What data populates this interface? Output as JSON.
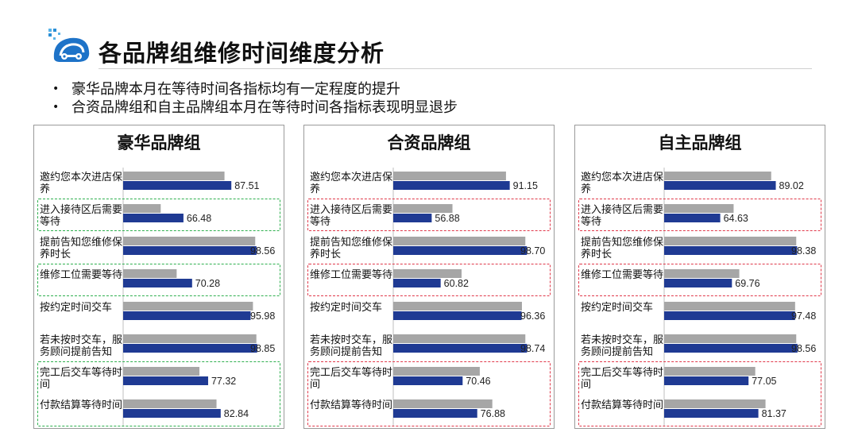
{
  "header": {
    "title": "各品牌组维修时间维度分析",
    "logo_icon": "car-wrench-logo-icon"
  },
  "bullets": [
    "豪华品牌本月在等待时间各指标均有一定程度的提升",
    "合资品牌组和自主品牌组本月在等待时间各指标表现明显退步"
  ],
  "colors": {
    "current_bar": "#1f3a93",
    "previous_bar": "#a6a6a6",
    "highlight_green": "#2fb04f",
    "highlight_red": "#e0394a"
  },
  "chart_data": [
    {
      "type": "bar",
      "orientation": "horizontal",
      "title": "豪华品牌组",
      "categories": [
        "邀约您本次进店保养",
        "进入接待区后需要等待",
        "提前告知您维修保养时长",
        "维修工位需要等待",
        "按约定时间交车",
        "若未按时交车，服务顾问提前告知",
        "完工后交车等待时间",
        "付款结算等待时间"
      ],
      "series": [
        {
          "values": [
            84.5,
            56.5,
            98.0,
            63.5,
            97.0,
            98.5,
            73.5,
            81.0
          ]
        },
        {
          "values": [
            87.51,
            66.48,
            98.56,
            70.28,
            95.98,
            98.85,
            77.32,
            82.84
          ]
        }
      ],
      "xlim": [
        40,
        100
      ],
      "highlight": "green",
      "highlight_groups": [
        [
          1
        ],
        [
          3
        ],
        [
          6,
          7
        ]
      ]
    },
    {
      "type": "bar",
      "orientation": "horizontal",
      "title": "合资品牌组",
      "categories": [
        "邀约您本次进店保养",
        "进入接待区后需要等待",
        "提前告知您维修保养时长",
        "维修工位需要等待",
        "按约定时间交车",
        "若未按时交车，服务顾问提前告知",
        "完工后交车等待时间",
        "付款结算等待时间"
      ],
      "series": [
        {
          "values": [
            89.5,
            66.0,
            98.0,
            70.0,
            96.5,
            98.0,
            78.0,
            83.5
          ]
        },
        {
          "values": [
            91.15,
            56.88,
            98.7,
            60.82,
            96.36,
            98.74,
            70.46,
            76.88
          ]
        }
      ],
      "xlim": [
        40,
        100
      ],
      "highlight": "red",
      "highlight_groups": [
        [
          1
        ],
        [
          3
        ],
        [
          6,
          7
        ]
      ]
    },
    {
      "type": "bar",
      "orientation": "horizontal",
      "title": "自主品牌组",
      "categories": [
        "邀约您本次进店保养",
        "进入接待区后需要等待",
        "提前告知您维修保养时长",
        "维修工位需要等待",
        "按约定时间交车",
        "若未按时交车，服务顾问提前告知",
        "完工后交车等待时间",
        "付款结算等待时间"
      ],
      "series": [
        {
          "values": [
            87.0,
            70.5,
            98.0,
            73.0,
            97.5,
            98.0,
            80.0,
            84.5
          ]
        },
        {
          "values": [
            89.02,
            64.63,
            98.38,
            69.76,
            97.48,
            98.56,
            77.05,
            81.37
          ]
        }
      ],
      "xlim": [
        40,
        100
      ],
      "highlight": "red",
      "highlight_groups": [
        [
          1
        ],
        [
          3
        ],
        [
          6,
          7
        ]
      ]
    }
  ]
}
